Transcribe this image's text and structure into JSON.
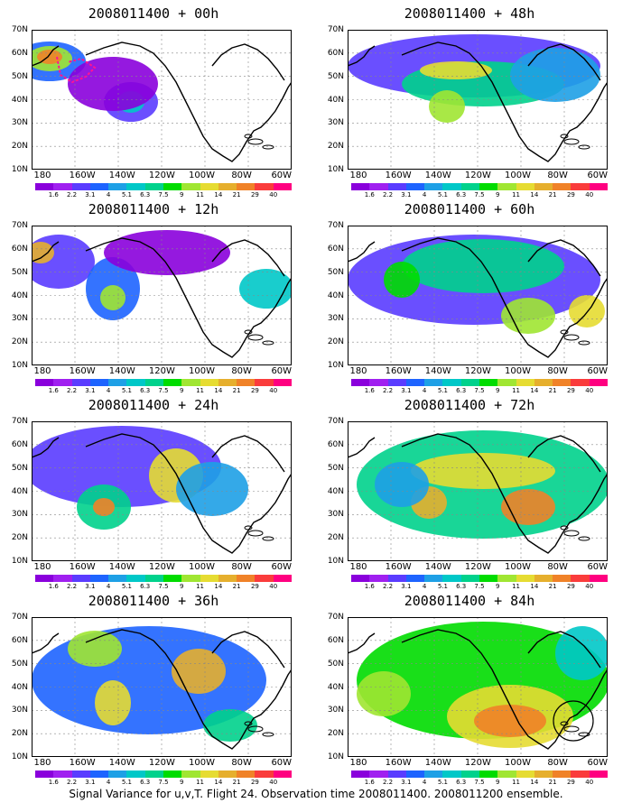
{
  "panels": [
    {
      "title": "2008011400 + 00h"
    },
    {
      "title": "2008011400 + 48h"
    },
    {
      "title": "2008011400 + 12h"
    },
    {
      "title": "2008011400 + 60h"
    },
    {
      "title": "2008011400 + 24h"
    },
    {
      "title": "2008011400 + 72h"
    },
    {
      "title": "2008011400 + 36h"
    },
    {
      "title": "2008011400 + 84h"
    }
  ],
  "lat_labels": [
    "70N",
    "60N",
    "50N",
    "40N",
    "30N",
    "20N",
    "10N"
  ],
  "lon_labels": [
    "180",
    "160W",
    "140W",
    "120W",
    "100W",
    "80W",
    "60W"
  ],
  "colorbar": {
    "labels": [
      "1.6",
      "2.2",
      "3.1",
      "4",
      "5.1",
      "6.3",
      "7.5",
      "9",
      "11",
      "14",
      "21",
      "29",
      "40"
    ],
    "colors": [
      "#8a00dc",
      "#a020f0",
      "#5a3cff",
      "#1e64ff",
      "#1ea0e6",
      "#00c8c8",
      "#00d28c",
      "#00dc00",
      "#a0e632",
      "#e6dc32",
      "#e6af2d",
      "#f08228",
      "#fa3c3c",
      "#ff0080"
    ]
  },
  "footer": "Signal Variance for u,v,T. Flight 24. Observation time 2008011400. 2008011200 ensemble."
}
